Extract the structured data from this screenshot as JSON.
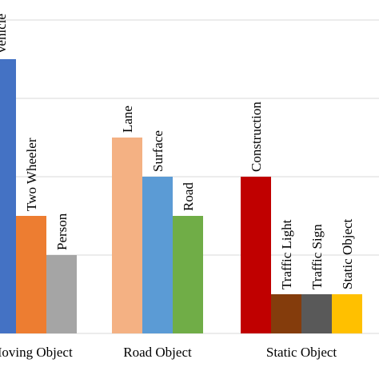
{
  "chart_data": {
    "type": "bar",
    "categories": [
      "Moving Object",
      "Road Object",
      "Static Object"
    ],
    "groups": [
      [
        {
          "name": "Vehicle",
          "color": "#4472c4",
          "value": 7
        },
        {
          "name": "Two Wheeler",
          "color": "#ed7d31",
          "value": 3
        },
        {
          "name": "Person",
          "color": "#a5a5a5",
          "value": 2
        }
      ],
      [
        {
          "name": "Lane",
          "color": "#f4b183",
          "value": 5
        },
        {
          "name": "Surface",
          "color": "#5b9bd5",
          "value": 4
        },
        {
          "name": "Road",
          "color": "#70ad47",
          "value": 3
        }
      ],
      [
        {
          "name": "Construction",
          "color": "#c00000",
          "value": 4
        },
        {
          "name": "Traffic Light",
          "color": "#843c0c",
          "value": 1
        },
        {
          "name": "Traffic Sign",
          "color": "#595959",
          "value": 1
        },
        {
          "name": "Static Object",
          "color": "#ffc000",
          "value": 1
        }
      ]
    ],
    "ylim": [
      0,
      8
    ],
    "yticks": [
      0,
      2,
      4,
      6,
      8
    ],
    "grid": true
  }
}
